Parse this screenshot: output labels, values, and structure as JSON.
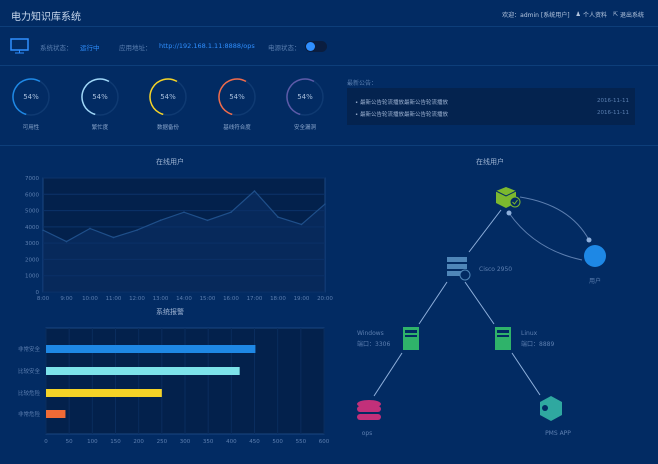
{
  "header": {
    "title": "电力知识库系统",
    "welcome": "欢迎：admin [系统用户]",
    "profile_label": "个人资料",
    "logout_label": "退出系统"
  },
  "status": {
    "system_status_label": "系统状态：",
    "system_status_value": "运行中",
    "app_address_label": "应用地址：",
    "app_address_value": "http://192.168.1.11:8888/ops",
    "power_status_label": "电源状态：",
    "power_on": true,
    "accent": "#2f8fff"
  },
  "gauges": [
    {
      "label": "可用性",
      "value": "54%",
      "percent": 54,
      "color": "#1e88e5"
    },
    {
      "label": "繁忙度",
      "value": "54%",
      "percent": 54,
      "color": "#9fd6f7"
    },
    {
      "label": "数据备份",
      "value": "54%",
      "percent": 54,
      "color": "#f5d327"
    },
    {
      "label": "基线符合度",
      "value": "54%",
      "percent": 54,
      "color": "#f06b4a"
    },
    {
      "label": "安全漏洞",
      "value": "54%",
      "percent": 54,
      "color": "#5c5aa8"
    }
  ],
  "notices": {
    "title": "最新公告：",
    "items": [
      {
        "text": "最新公告轮流播放最新公告轮流播放",
        "date": "2016-11-11"
      },
      {
        "text": "最新公告轮流播放最新公告轮流播放",
        "date": "2016-11-11"
      }
    ]
  },
  "chart_data": [
    {
      "type": "line",
      "title": "在线用户",
      "categories": [
        "8:00",
        "9:00",
        "10:00",
        "11:00",
        "12:00",
        "13:00",
        "14:00",
        "15:00",
        "16:00",
        "17:00",
        "18:00",
        "19:00",
        "20:00"
      ],
      "values": [
        3800,
        3100,
        3900,
        3350,
        3800,
        4400,
        4900,
        4400,
        4900,
        6200,
        4600,
        4150,
        5400
      ],
      "ylim": [
        0,
        7000
      ],
      "yticks": [
        0,
        1000,
        2000,
        3000,
        4000,
        5000,
        6000,
        7000
      ],
      "grid": true,
      "color": "#1f4f8a"
    },
    {
      "type": "bar",
      "orientation": "horizontal",
      "title": "系统报警",
      "categories": [
        "非常安全",
        "比较安全",
        "比较危险",
        "非常危险"
      ],
      "values": [
        452,
        418,
        250,
        42
      ],
      "colors": [
        "#1e88e5",
        "#7de3ea",
        "#f5d327",
        "#f06b36"
      ],
      "xlim": [
        0,
        600
      ],
      "xticks": [
        0,
        50,
        100,
        150,
        200,
        250,
        300,
        350,
        400,
        450,
        500,
        550,
        600
      ],
      "grid": true
    }
  ],
  "topology": {
    "title": "在线用户",
    "nodes": {
      "root": {
        "icon": "cube-check-icon",
        "color": "#7cb82f"
      },
      "user": {
        "label": "用户",
        "icon": "user-icon",
        "color": "#1e88e5"
      },
      "switch": {
        "label": "Cisco 2950",
        "icon": "server-rack-icon",
        "color": "#4f86b8"
      },
      "windows": {
        "label": "Windows",
        "port": "端口：3306",
        "icon": "server-icon",
        "color": "#2fb36a"
      },
      "linux": {
        "label": "Linux",
        "port": "端口：8889",
        "icon": "server-icon",
        "color": "#2fb36a"
      },
      "ops": {
        "label": "ops",
        "icon": "database-icon",
        "color": "#c2307a"
      },
      "pms": {
        "label": "PMS APP",
        "icon": "app-hex-icon",
        "color": "#2fa8a0"
      }
    }
  }
}
